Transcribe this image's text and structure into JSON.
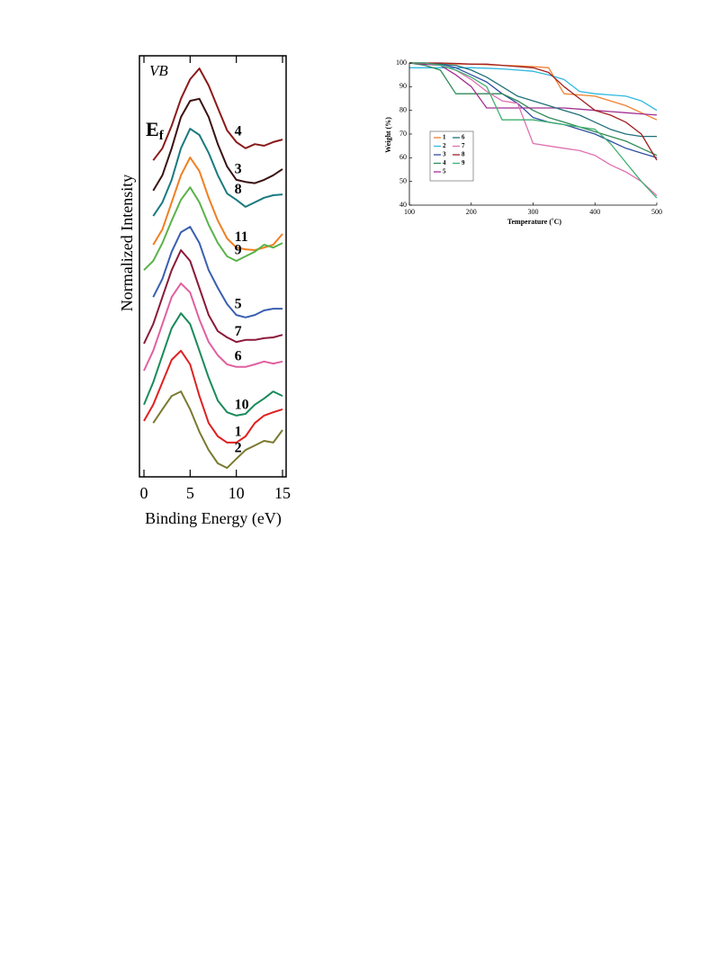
{
  "chart_data": [
    {
      "type": "line",
      "x_label": "Binding Energy (eV)",
      "y_label": "Normalized Intensity",
      "annotations": [
        {
          "text": "VB"
        },
        {
          "text": "E",
          "sub": "f"
        }
      ],
      "x": [
        0,
        1,
        2,
        3,
        4,
        5,
        6,
        7,
        8,
        9,
        10,
        11,
        12,
        13,
        14,
        15
      ],
      "xlim": [
        0,
        15
      ],
      "xticks": [
        0,
        5,
        10,
        15
      ],
      "ylim": [
        0,
        100
      ],
      "series": [
        {
          "name": "4",
          "color": "#8b1a1a",
          "values": [
            null,
            75.5,
            78.4,
            83.8,
            90.3,
            95,
            97.6,
            93.5,
            88.1,
            82.7,
            79.9,
            78.4,
            79.4,
            79,
            79.9,
            80.5
          ]
        },
        {
          "name": "3",
          "color": "#3b1212",
          "values": [
            null,
            68.2,
            71.9,
            78.4,
            85.9,
            89.8,
            90.3,
            85.9,
            79.4,
            74,
            70.8,
            70.3,
            70,
            70.8,
            71.9,
            73.4
          ]
        },
        {
          "name": "8",
          "color": "#1a7a80",
          "values": [
            null,
            62.1,
            65.4,
            70.8,
            78.4,
            83.1,
            81.6,
            77.3,
            71.9,
            67.5,
            66,
            64.3,
            65.4,
            66.5,
            67.1,
            67.3
          ]
        },
        {
          "name": "11",
          "color": "#f07f20",
          "values": [
            null,
            55.2,
            58.9,
            65.4,
            71.9,
            76.2,
            72.9,
            66.5,
            61,
            56.7,
            54.5,
            54.1,
            53.9,
            54.5,
            55.2,
            57.8
          ]
        },
        {
          "name": "9",
          "color": "#5ab34a",
          "values": [
            49.1,
            51.3,
            55.6,
            61,
            66,
            69,
            65.4,
            60,
            55.6,
            52.4,
            51.3,
            52.4,
            53.5,
            55.2,
            54.5,
            55.6
          ]
        },
        {
          "name": "5",
          "color": "#3a5fb0",
          "values": [
            null,
            42.6,
            47,
            53.5,
            58.2,
            59.5,
            55.6,
            49.1,
            44.8,
            40.9,
            38.3,
            37.7,
            38.3,
            39.4,
            39.8,
            39.8
          ]
        },
        {
          "name": "7",
          "color": "#8b1a3a",
          "values": [
            31.4,
            36.1,
            42.6,
            49.1,
            53.9,
            51.3,
            44.8,
            38.3,
            34.4,
            32.9,
            31.8,
            32.3,
            32.3,
            32.7,
            32.9,
            33.5
          ]
        },
        {
          "name": "6",
          "color": "#e060a0",
          "values": [
            24.9,
            29.7,
            36.1,
            42.6,
            45.9,
            43.7,
            37.2,
            31.8,
            28.6,
            26.4,
            25.8,
            25.8,
            26.4,
            27.1,
            26.6,
            27.1
          ]
        },
        {
          "name": "10",
          "color": "#1a8a5a",
          "values": [
            16.7,
            22.1,
            28.6,
            35.1,
            38.7,
            36.1,
            29.7,
            23.2,
            17.7,
            14.9,
            14.1,
            14.5,
            16.7,
            18.2,
            19.9,
            18.8
          ]
        },
        {
          "name": "1",
          "color": "#e02020",
          "values": [
            12.8,
            16.7,
            22.1,
            27.5,
            29.7,
            26.4,
            18.8,
            12.3,
            9.1,
            7.6,
            7.6,
            9.1,
            12.3,
            14.1,
            14.9,
            15.6
          ]
        },
        {
          "name": "2",
          "color": "#7a7a30",
          "values": [
            null,
            12.3,
            15.6,
            18.8,
            19.9,
            15.6,
            10.2,
            5.8,
            2.6,
            1.5,
            3.7,
            5.8,
            6.9,
            8,
            7.6,
            10.6
          ]
        }
      ]
    },
    {
      "type": "line",
      "x_label": "Temperature (˚C)",
      "y_label": "Weight (%)",
      "x": [
        100,
        125,
        150,
        175,
        200,
        225,
        250,
        275,
        300,
        325,
        350,
        375,
        400,
        425,
        450,
        475,
        500
      ],
      "xlim": [
        100,
        500
      ],
      "xticks": [
        100,
        200,
        300,
        400,
        500
      ],
      "ylim": [
        40,
        100
      ],
      "yticks": [
        40,
        50,
        60,
        70,
        80,
        90,
        100
      ],
      "series": [
        {
          "name": "1",
          "color": "#f08030",
          "values": [
            100,
            100,
            99.8,
            99.6,
            99.5,
            99.3,
            99,
            98.8,
            98.5,
            98,
            87,
            86.5,
            86,
            84,
            82,
            79,
            76
          ]
        },
        {
          "name": "2",
          "color": "#30b8e0",
          "values": [
            98,
            98,
            98,
            98,
            98,
            97.8,
            97.5,
            97,
            96.5,
            95,
            93,
            88,
            87,
            86.5,
            86,
            84,
            80
          ]
        },
        {
          "name": "3",
          "color": "#3050a0",
          "values": [
            100,
            100,
            99.5,
            98,
            95,
            92,
            87,
            83,
            77,
            75,
            74,
            72,
            70,
            67,
            64,
            62,
            60
          ]
        },
        {
          "name": "4",
          "color": "#2e8b57",
          "values": [
            100,
            99,
            97,
            87,
            87,
            87,
            87,
            84,
            80,
            77,
            75,
            73,
            71,
            69,
            67,
            64,
            61
          ]
        },
        {
          "name": "5",
          "color": "#a03090",
          "values": [
            100,
            99.5,
            99,
            95,
            90,
            81,
            81,
            81,
            81,
            81,
            81,
            80.5,
            80,
            79.5,
            79,
            78.5,
            78
          ]
        },
        {
          "name": "6",
          "color": "#20707a",
          "values": [
            100,
            100,
            99.5,
            99,
            97,
            94,
            90,
            86,
            84,
            82,
            80,
            78,
            75,
            72,
            70,
            69,
            69
          ]
        },
        {
          "name": "7",
          "color": "#e070b0",
          "values": [
            100,
            100,
            99,
            97,
            93,
            88,
            84,
            83,
            66,
            65,
            64,
            63,
            61,
            57,
            54,
            50,
            44
          ]
        },
        {
          "name": "8",
          "color": "#a02020",
          "values": [
            100,
            100,
            100,
            99.8,
            99.5,
            99.5,
            99,
            98.5,
            98,
            96,
            90,
            85,
            80,
            78,
            75,
            70,
            59
          ]
        },
        {
          "name": "9",
          "color": "#40b070",
          "values": [
            100,
            100,
            99,
            97,
            94,
            90,
            76,
            76,
            76,
            75,
            74,
            73,
            72,
            66,
            58,
            50,
            43
          ]
        }
      ]
    }
  ]
}
